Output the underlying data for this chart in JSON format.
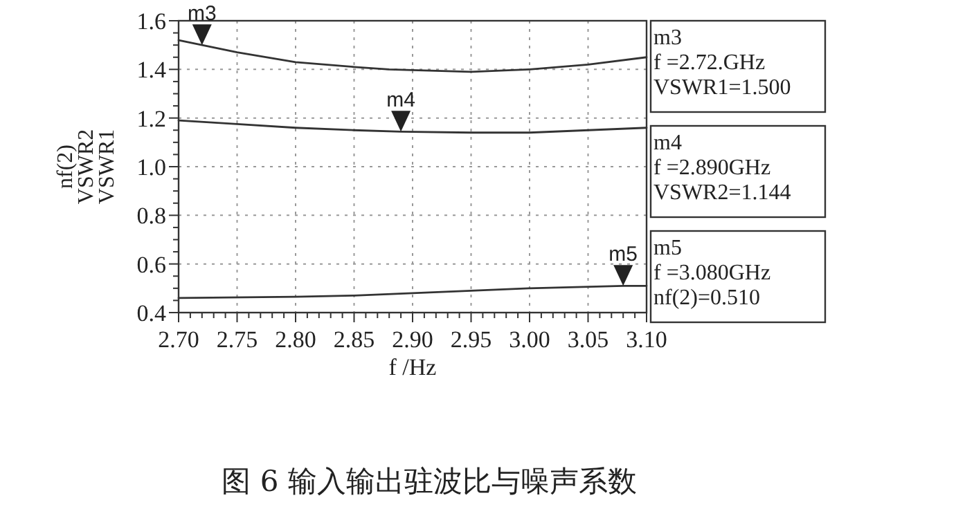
{
  "chart_data": {
    "type": "line",
    "xlabel": "f /Hz",
    "ylabel": "nf(2)\nVSWR2\nVSWR1",
    "xlim": [
      2.7,
      3.1
    ],
    "ylim": [
      0.4,
      1.6
    ],
    "xticks": [
      {
        "value": 2.7,
        "label": "2.70"
      },
      {
        "value": 2.75,
        "label": "2.75"
      },
      {
        "value": 2.8,
        "label": "2.80"
      },
      {
        "value": 2.85,
        "label": "2.85"
      },
      {
        "value": 2.9,
        "label": "2.90"
      },
      {
        "value": 2.95,
        "label": "2.95"
      },
      {
        "value": 3.0,
        "label": "3.00"
      },
      {
        "value": 3.05,
        "label": "3.05"
      },
      {
        "value": 3.1,
        "label": "3.10"
      }
    ],
    "yticks": [
      0.4,
      0.6,
      0.8,
      {
        "value": 1.0,
        "label": "1.0"
      },
      1.2,
      1.4,
      1.6
    ],
    "grid": true,
    "line_style": "solid",
    "marker": "none",
    "series": [
      {
        "color": "#333333",
        "x": [
          2.7,
          2.72,
          2.75,
          2.8,
          2.85,
          2.88,
          2.95,
          3.0,
          3.05,
          3.1
        ],
        "values": [
          1.52,
          1.5,
          1.47,
          1.43,
          1.41,
          1.4,
          1.39,
          1.4,
          1.42,
          1.45
        ]
      },
      {
        "color": "#333333",
        "x": [
          2.7,
          2.75,
          2.8,
          2.85,
          2.89,
          2.95,
          3.0,
          3.05,
          3.1
        ],
        "values": [
          1.19,
          1.175,
          1.16,
          1.15,
          1.144,
          1.14,
          1.14,
          1.15,
          1.16
        ]
      },
      {
        "color": "#333333",
        "x": [
          2.7,
          2.8,
          2.85,
          2.95,
          3.0,
          3.08,
          3.1
        ],
        "values": [
          0.46,
          0.465,
          0.47,
          0.49,
          0.5,
          0.51,
          0.51
        ]
      }
    ],
    "annotations": [
      {
        "text": "m3",
        "x": 2.72,
        "y": 1.5
      },
      {
        "text": "m4",
        "x": 2.89,
        "y": 1.144
      },
      {
        "text": "m5",
        "x": 3.08,
        "y": 0.51
      },
      "m3\nf =2.72.GHz\nVSWR1=1.500",
      "m4\nf =2.890GHz\nVSWR2=1.144",
      "m5\nf =3.080GHz\nnf(2)=0.510",
      "图 6   输入输出驻波比与噪声系数"
    ]
  }
}
